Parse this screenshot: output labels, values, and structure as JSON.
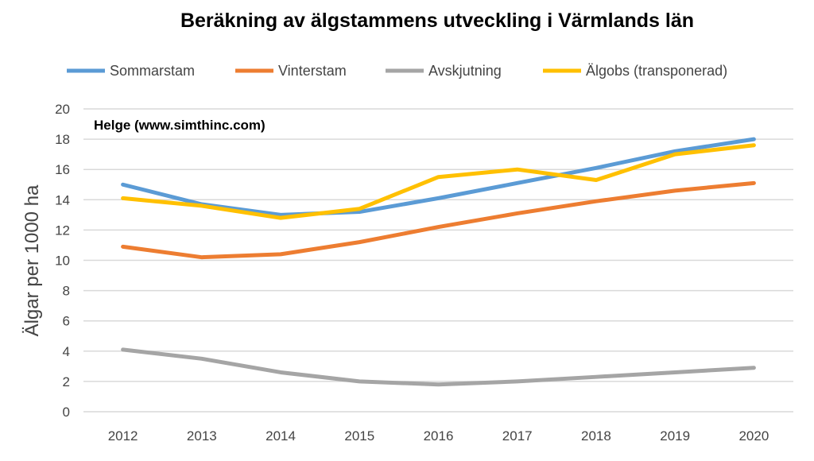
{
  "chart_data": {
    "type": "line",
    "title": "Beräkning av älgstammens utveckling i Värmlands län",
    "annotation": "Helge (www.simthinc.com)",
    "xlabel": "",
    "ylabel": "Älgar per 1000 ha",
    "ylim": [
      0,
      20
    ],
    "yticks": [
      0,
      2,
      4,
      6,
      8,
      10,
      12,
      14,
      16,
      18,
      20
    ],
    "grid": true,
    "legend_position": "top",
    "categories": [
      "2012",
      "2013",
      "2014",
      "2015",
      "2016",
      "2017",
      "2018",
      "2019",
      "2020"
    ],
    "series": [
      {
        "name": "Sommarstam",
        "color": "#5B9BD5",
        "values": [
          15.0,
          13.7,
          13.0,
          13.2,
          14.1,
          15.1,
          16.1,
          17.2,
          18.0
        ]
      },
      {
        "name": "Vinterstam",
        "color": "#ED7D31",
        "values": [
          10.9,
          10.2,
          10.4,
          11.2,
          12.2,
          13.1,
          13.9,
          14.6,
          15.1
        ]
      },
      {
        "name": "Avskjutning",
        "color": "#A5A5A5",
        "values": [
          4.1,
          3.5,
          2.6,
          2.0,
          1.8,
          2.0,
          2.3,
          2.6,
          2.9
        ]
      },
      {
        "name": "Älgobs (transponerad)",
        "color": "#FFC000",
        "values": [
          14.1,
          13.6,
          12.8,
          13.4,
          15.5,
          16.0,
          15.3,
          17.0,
          17.6
        ]
      }
    ]
  }
}
